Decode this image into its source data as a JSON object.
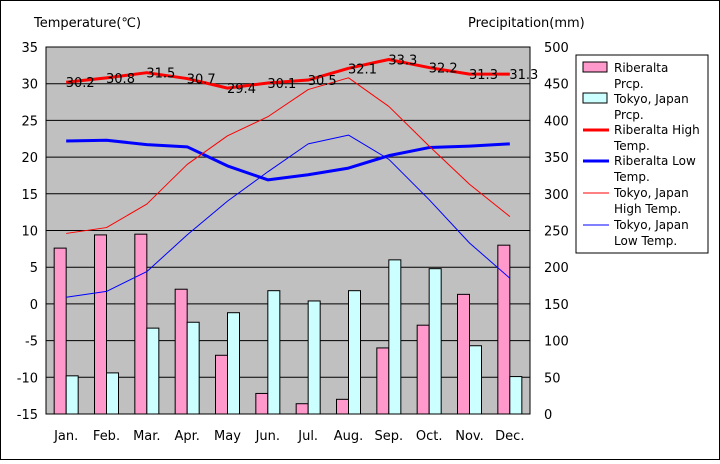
{
  "chart_data": {
    "type": "bar",
    "title": "",
    "y_left_label": "Temperature(℃)",
    "y_right_label": "Precipitation(mm)",
    "categories": [
      "Jan.",
      "Feb.",
      "Mar.",
      "Apr.",
      "May",
      "Jun.",
      "Jul.",
      "Aug.",
      "Sep.",
      "Oct.",
      "Nov.",
      "Dec."
    ],
    "y_left_lim": [
      -15,
      35
    ],
    "y_left_ticks": [
      -15,
      -10,
      -5,
      0,
      5,
      10,
      15,
      20,
      25,
      30,
      35
    ],
    "y_right_lim": [
      0,
      500
    ],
    "y_right_ticks": [
      0,
      50,
      100,
      150,
      200,
      250,
      300,
      350,
      400,
      450,
      500
    ],
    "grid": true,
    "legend_position": "right",
    "series": [
      {
        "name": "Riberalta Prcp.",
        "kind": "bar",
        "axis": "right",
        "color": "#ff99cc",
        "values": [
          226,
          244,
          245,
          170,
          80,
          28,
          14,
          20,
          90,
          121,
          163,
          230
        ]
      },
      {
        "name": "Tokyo, Japan Prcp.",
        "kind": "bar",
        "axis": "right",
        "color": "#ccffff",
        "values": [
          52,
          56,
          117,
          125,
          138,
          168,
          154,
          168,
          210,
          198,
          93,
          51
        ]
      },
      {
        "name": "Riberalta High Temp.",
        "kind": "line",
        "axis": "left",
        "color": "#ff0000",
        "width": 3,
        "values": [
          30.2,
          30.8,
          31.5,
          30.7,
          29.4,
          30.1,
          30.5,
          32.1,
          33.3,
          32.2,
          31.3,
          31.3
        ],
        "labels": [
          "30.2",
          "30.8",
          "31.5",
          "30.7",
          "29.4",
          "30.1",
          "30.5",
          "32.1",
          "33.3",
          "32.2",
          "31.3",
          "31.3"
        ]
      },
      {
        "name": "Riberalta Low Temp.",
        "kind": "line",
        "axis": "left",
        "color": "#0000ff",
        "width": 3,
        "values": [
          22.2,
          22.3,
          21.7,
          21.4,
          18.8,
          16.9,
          17.6,
          18.5,
          20.2,
          21.3,
          21.5,
          21.8
        ]
      },
      {
        "name": "Tokyo, Japan High Temp.",
        "kind": "line",
        "axis": "left",
        "color": "#ff0000",
        "width": 1,
        "values": [
          9.6,
          10.4,
          13.6,
          19.0,
          22.9,
          25.5,
          29.2,
          30.8,
          26.9,
          21.5,
          16.3,
          11.9
        ]
      },
      {
        "name": "Tokyo, Japan Low Temp.",
        "kind": "line",
        "axis": "left",
        "color": "#0000ff",
        "width": 1,
        "values": [
          0.9,
          1.7,
          4.4,
          9.4,
          14.0,
          18.0,
          21.8,
          23.0,
          19.7,
          14.2,
          8.3,
          3.5
        ]
      }
    ]
  }
}
